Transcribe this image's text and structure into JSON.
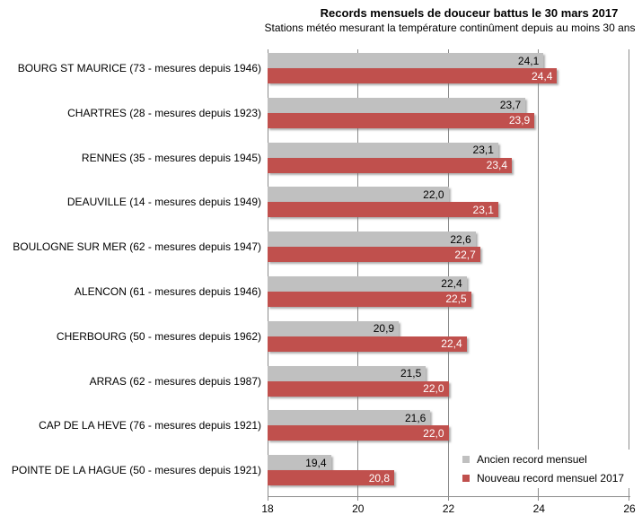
{
  "chart_data": {
    "type": "bar",
    "orientation": "horizontal",
    "title": "Records mensuels de douceur battus le 30 mars 2017",
    "subtitle": "Stations météo mesurant la température continûment depuis au moins 30 ans",
    "categories": [
      "BOURG ST MAURICE (73 - mesures depuis 1946)",
      "CHARTRES (28 - mesures depuis 1923)",
      "RENNES (35 - mesures depuis 1945)",
      "DEAUVILLE (14 - mesures depuis 1949)",
      "BOULOGNE SUR MER (62 - mesures depuis 1947)",
      "ALENCON (61 - mesures depuis 1946)",
      "CHERBOURG (50 - mesures depuis 1962)",
      "ARRAS (62 - mesures depuis 1987)",
      "CAP DE LA HEVE (76 - mesures depuis 1921)",
      "POINTE DE LA HAGUE (50 - mesures depuis 1921)"
    ],
    "series": [
      {
        "name": "Ancien record mensuel",
        "color": "#C0C0C0",
        "label_color": "#000000",
        "values": [
          24.1,
          23.7,
          23.1,
          22.0,
          22.6,
          22.4,
          20.9,
          21.5,
          21.6,
          19.4
        ],
        "labels": [
          "24,1",
          "23,7",
          "23,1",
          "22,0",
          "22,6",
          "22,4",
          "20,9",
          "21,5",
          "21,6",
          "19,4"
        ]
      },
      {
        "name": "Nouveau record mensuel 2017",
        "color": "#C0504D",
        "label_color": "#FFFFFF",
        "values": [
          24.4,
          23.9,
          23.4,
          23.1,
          22.7,
          22.5,
          22.4,
          22.0,
          22.0,
          20.8
        ],
        "labels": [
          "24,4",
          "23,9",
          "23,4",
          "23,1",
          "22,7",
          "22,5",
          "22,4",
          "22,0",
          "22,0",
          "20,8"
        ]
      }
    ],
    "xlim": [
      18,
      26
    ],
    "x_ticks": [
      "18",
      "20",
      "22",
      "24",
      "26"
    ],
    "grid": "vertical",
    "gridline_color": "#8C8C8C",
    "legend_position": "inside-bottom-right"
  }
}
